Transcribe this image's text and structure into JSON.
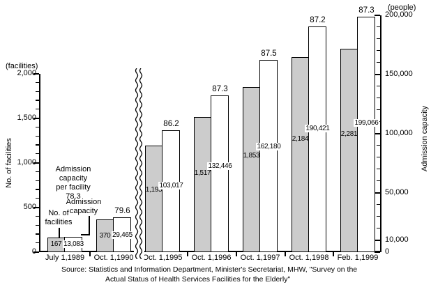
{
  "chart_data": {
    "type": "bar",
    "categories": [
      "July 1,1989",
      "Oct. 1,1990",
      "Oct. 1,1995",
      "Oct. 1,1996",
      "Oct. 1,1997",
      "Oct. 1,1998",
      "Feb. 1,1999"
    ],
    "series": [
      {
        "name": "No. of facilities",
        "axis": "left",
        "color": "#cccccc",
        "values": [
          167,
          370,
          1195,
          1517,
          1853,
          2184,
          2281
        ],
        "labels": [
          "167",
          "370",
          "1,195",
          "1,517",
          "1,853",
          "2,184",
          "2,281"
        ]
      },
      {
        "name": "Admission capacity",
        "axis": "right",
        "color": "#ffffff",
        "values": [
          13083,
          29465,
          103017,
          132446,
          162180,
          190421,
          199066
        ],
        "labels": [
          "13,083",
          "29,465",
          "103,017",
          "132,446",
          "162,180",
          "190,421",
          "199,066"
        ]
      }
    ],
    "per_facility": [
      "78.3",
      "79.6",
      "86.2",
      "87.3",
      "87.5",
      "87.2",
      "87.3"
    ],
    "left_axis": {
      "unit": "(facilities)",
      "title": "No. of facilities",
      "ticks": [
        "2,000",
        "1,500",
        "1,000",
        "500",
        "0"
      ],
      "tick_values": [
        2000,
        1500,
        1000,
        500,
        0
      ],
      "range": [
        0,
        2000
      ],
      "minor_step": 100
    },
    "right_axis": {
      "unit": "(people)",
      "title": "Admission capacity",
      "ticks": [
        "200,000",
        "150,000",
        "100,000",
        "50,000",
        "10,000",
        "0"
      ],
      "tick_values": [
        200000,
        150000,
        100000,
        50000,
        10000,
        0
      ],
      "range": [
        0,
        200000
      ],
      "minor_step": 10000
    },
    "axis_break_after_category": "Oct. 1,1990",
    "grid": false,
    "legend": "in-plot callout labels"
  },
  "annotations": {
    "per_facility_note": {
      "line1": "Admission",
      "line2": "capacity",
      "line3": "per facility"
    }
  },
  "source": {
    "line1": "Source:  Statistics and Information Department, Minister's Secretariat, MHW, \"Survey on the",
    "line2": "Actual Status of Health Services Facilities for the Elderly\""
  }
}
